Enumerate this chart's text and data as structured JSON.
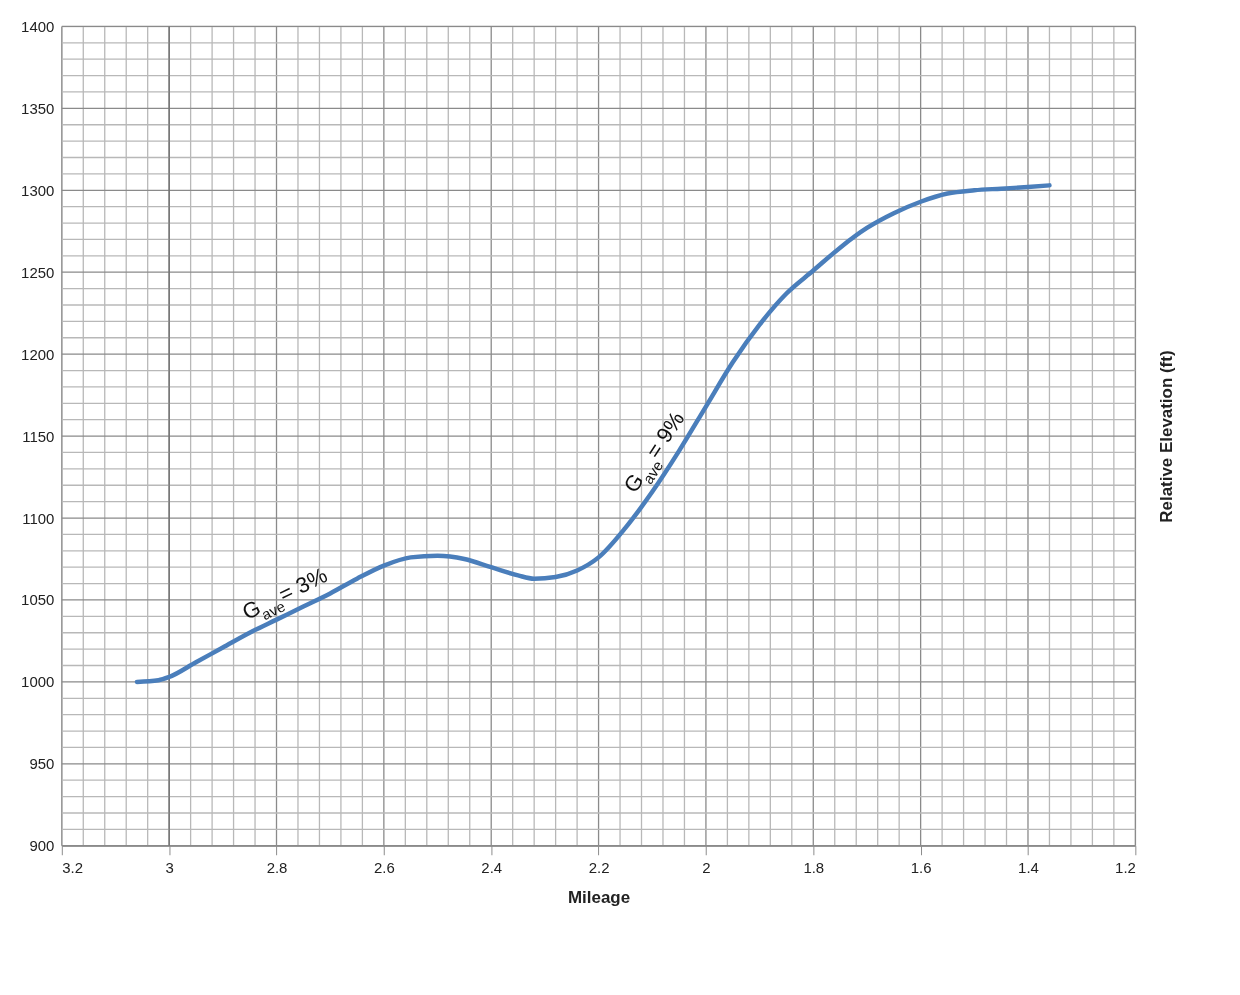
{
  "chart_data": {
    "type": "line",
    "xlabel": "Mileage",
    "ylabel": "Relative Elevation (ft)",
    "x": [
      3.06,
      3.02,
      3.0,
      2.95,
      2.9,
      2.85,
      2.8,
      2.75,
      2.7,
      2.65,
      2.6,
      2.55,
      2.5,
      2.45,
      2.4,
      2.35,
      2.32,
      2.28,
      2.24,
      2.2,
      2.15,
      2.1,
      2.05,
      2.0,
      1.95,
      1.9,
      1.85,
      1.8,
      1.75,
      1.7,
      1.65,
      1.6,
      1.55,
      1.5,
      1.45,
      1.4,
      1.36
    ],
    "series": [
      {
        "color": "#4a7ebb",
        "values": [
          1000,
          1001,
          1003,
          1012,
          1021,
          1030,
          1038,
          1046,
          1054,
          1063,
          1071,
          1076,
          1077,
          1075,
          1070,
          1065,
          1063,
          1064,
          1068,
          1076,
          1094,
          1116,
          1141,
          1168,
          1195,
          1218,
          1237,
          1251,
          1265,
          1277,
          1286,
          1293,
          1298,
          1300,
          1301,
          1302,
          1303
        ]
      }
    ],
    "xlim": [
      3.2,
      1.2
    ],
    "ylim": [
      900,
      1400
    ],
    "xticks": [
      3.2,
      {
        "value": 3.16,
        "label": null
      },
      {
        "value": 3.12,
        "label": null
      },
      {
        "value": 3.08,
        "label": null
      },
      {
        "value": 3.04,
        "label": null
      },
      3,
      {
        "value": 2.96,
        "label": null
      },
      {
        "value": 2.92,
        "label": null
      },
      {
        "value": 2.88,
        "label": null
      },
      {
        "value": 2.84,
        "label": null
      },
      2.8,
      {
        "value": 2.76,
        "label": null
      },
      {
        "value": 2.72,
        "label": null
      },
      {
        "value": 2.68,
        "label": null
      },
      {
        "value": 2.64,
        "label": null
      },
      2.6,
      {
        "value": 2.56,
        "label": null
      },
      {
        "value": 2.52,
        "label": null
      },
      {
        "value": 2.48,
        "label": null
      },
      {
        "value": 2.44,
        "label": null
      },
      2.4,
      {
        "value": 2.36,
        "label": null
      },
      {
        "value": 2.32,
        "label": null
      },
      {
        "value": 2.28,
        "label": null
      },
      {
        "value": 2.24,
        "label": null
      },
      2.2,
      {
        "value": 2.16,
        "label": null
      },
      {
        "value": 2.12,
        "label": null
      },
      {
        "value": 2.08,
        "label": null
      },
      {
        "value": 2.04,
        "label": null
      },
      2,
      {
        "value": 1.96,
        "label": null
      },
      {
        "value": 1.92,
        "label": null
      },
      {
        "value": 1.88,
        "label": null
      },
      {
        "value": 1.84,
        "label": null
      },
      1.8,
      {
        "value": 1.76,
        "label": null
      },
      {
        "value": 1.72,
        "label": null
      },
      {
        "value": 1.68,
        "label": null
      },
      {
        "value": 1.64,
        "label": null
      },
      1.6,
      {
        "value": 1.56,
        "label": null
      },
      {
        "value": 1.52,
        "label": null
      },
      {
        "value": 1.48,
        "label": null
      },
      {
        "value": 1.44,
        "label": null
      },
      1.4,
      {
        "value": 1.36,
        "label": null
      },
      {
        "value": 1.32,
        "label": null
      },
      {
        "value": 1.28,
        "label": null
      },
      {
        "value": 1.24,
        "label": null
      },
      1.2
    ],
    "yticks": [
      900,
      {
        "value": 910,
        "label": null
      },
      {
        "value": 920,
        "label": null
      },
      {
        "value": 930,
        "label": null
      },
      {
        "value": 940,
        "label": null
      },
      950,
      {
        "value": 960,
        "label": null
      },
      {
        "value": 970,
        "label": null
      },
      {
        "value": 980,
        "label": null
      },
      {
        "value": 990,
        "label": null
      },
      1000,
      {
        "value": 1010,
        "label": null
      },
      {
        "value": 1020,
        "label": null
      },
      {
        "value": 1030,
        "label": null
      },
      {
        "value": 1040,
        "label": null
      },
      1050,
      {
        "value": 1060,
        "label": null
      },
      {
        "value": 1070,
        "label": null
      },
      {
        "value": 1080,
        "label": null
      },
      {
        "value": 1090,
        "label": null
      },
      1100,
      {
        "value": 1110,
        "label": null
      },
      {
        "value": 1120,
        "label": null
      },
      {
        "value": 1130,
        "label": null
      },
      {
        "value": 1140,
        "label": null
      },
      1150,
      {
        "value": 1160,
        "label": null
      },
      {
        "value": 1170,
        "label": null
      },
      {
        "value": 1180,
        "label": null
      },
      {
        "value": 1190,
        "label": null
      },
      1200,
      {
        "value": 1210,
        "label": null
      },
      {
        "value": 1220,
        "label": null
      },
      {
        "value": 1230,
        "label": null
      },
      {
        "value": 1240,
        "label": null
      },
      1250,
      {
        "value": 1260,
        "label": null
      },
      {
        "value": 1270,
        "label": null
      },
      {
        "value": 1280,
        "label": null
      },
      {
        "value": 1290,
        "label": null
      },
      1300,
      {
        "value": 1310,
        "label": null
      },
      {
        "value": 1320,
        "label": null
      },
      {
        "value": 1330,
        "label": null
      },
      {
        "value": 1340,
        "label": null
      },
      1350,
      {
        "value": 1360,
        "label": null
      },
      {
        "value": 1370,
        "label": null
      },
      {
        "value": 1380,
        "label": null
      },
      {
        "value": 1390,
        "label": null
      },
      1400
    ],
    "grid": true,
    "marker": "none",
    "line_style": "solid",
    "ref_lines": [
      {
        "axis": "x",
        "value": 3,
        "color": "#6e6e6e"
      }
    ],
    "annotations": [
      {
        "text": "G$_{ave}$ = 3%",
        "x": 2.76,
        "y": 1044
      },
      {
        "text": "G$_{ave}$ = 9%",
        "x": 2.06,
        "y": 1136
      }
    ]
  }
}
